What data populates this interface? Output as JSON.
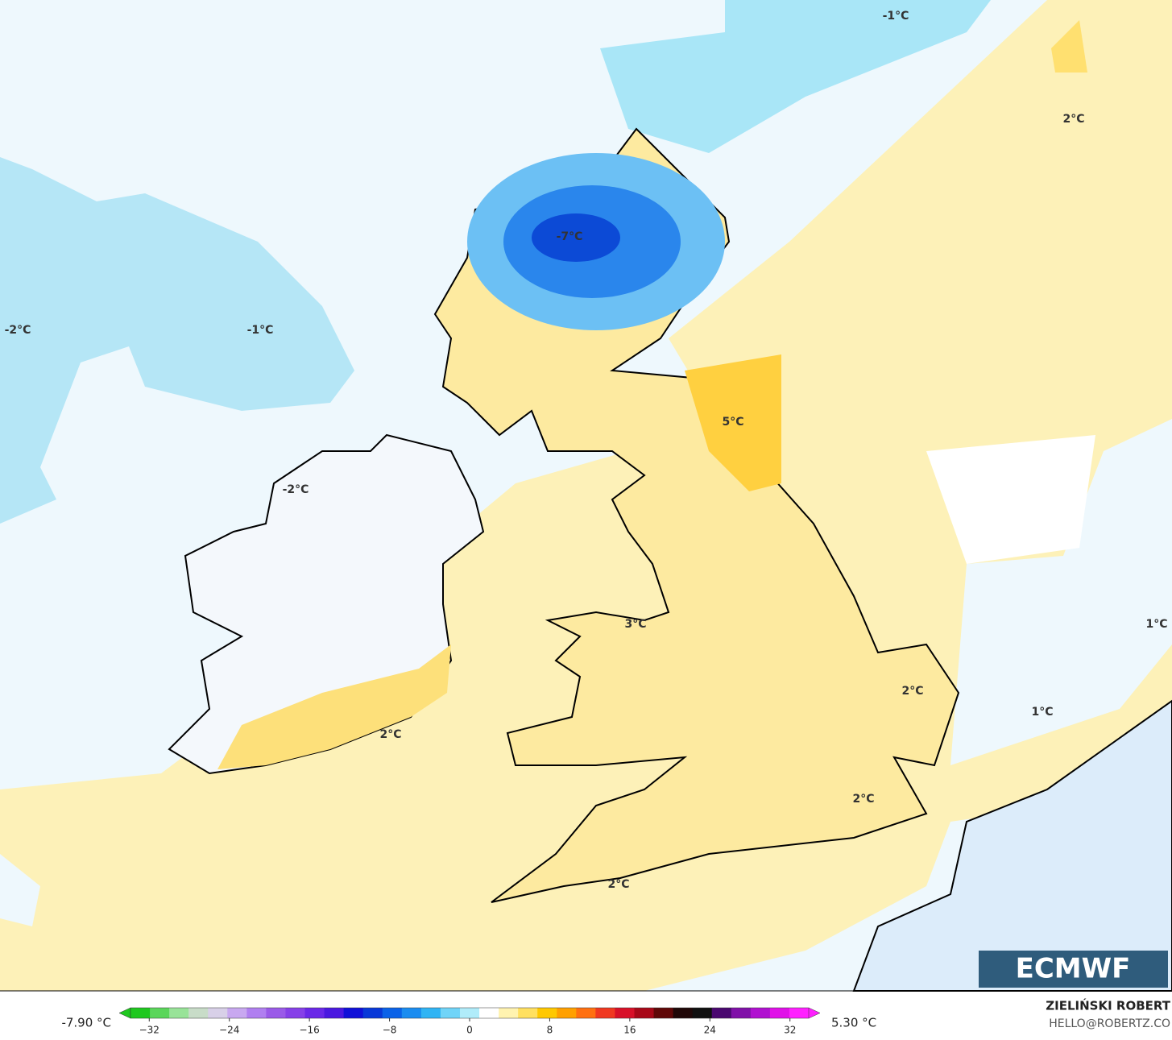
{
  "map": {
    "labels": [
      "-1°C",
      "2°C",
      "-2°C",
      "-1°C",
      "-7°C",
      "5°C",
      "-2°C",
      "3°C",
      "2°C",
      "2°C",
      "2°C",
      "2°C",
      "1°C",
      "1°C"
    ],
    "logo": "ECMWF",
    "author": "ZIELIŃSKI ROBERT",
    "contact": "HELLO@ROBERTZ.CO"
  },
  "colorbar": {
    "min_label": "-7.90 °C",
    "max_label": "5.30 °C",
    "lim": [
      -35,
      35
    ],
    "ticks": [
      {
        "value": -32,
        "label": "−32"
      },
      {
        "value": -24,
        "label": "−24"
      },
      {
        "value": -16,
        "label": "−16"
      },
      {
        "value": -8,
        "label": "−8"
      },
      0,
      8,
      16,
      24,
      32
    ],
    "colors": [
      "#1fc81f",
      "#5ad65a",
      "#98e398",
      "#c8dcc8",
      "#d8d0e8",
      "#c8a8f0",
      "#b07ff0",
      "#9a5ae8",
      "#8640e8",
      "#6a28e8",
      "#4a18e0",
      "#1010d8",
      "#0838d8",
      "#0a62e8",
      "#1a8cf0",
      "#30b4f4",
      "#70d4f8",
      "#b0ecfa",
      "#ffffff",
      "#fff3b0",
      "#ffe060",
      "#ffc800",
      "#ffa000",
      "#ff7010",
      "#f03820",
      "#d81028",
      "#a80818",
      "#600808",
      "#200808",
      "#101010",
      "#4a0870",
      "#8010a8",
      "#b010d0",
      "#e010e8",
      "#ff20ff"
    ]
  }
}
